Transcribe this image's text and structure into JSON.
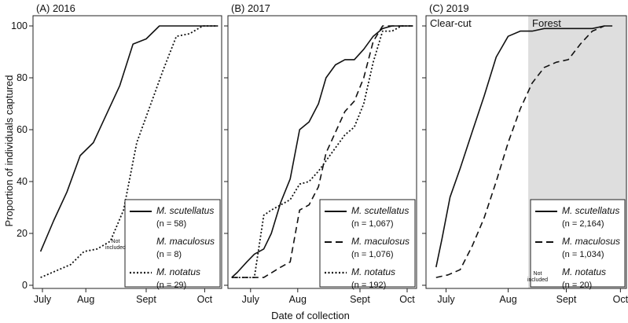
{
  "figure": {
    "ylabel": "Proportion of individuals captured",
    "xlabel": "Date of collection"
  },
  "colors": {
    "forest_shade": "#dedede",
    "line": "#111111",
    "axis": "#222222"
  },
  "chart_data": [
    {
      "type": "line",
      "title": "(A) 2016",
      "ylim": [
        0,
        100
      ],
      "yticks": [
        0,
        20,
        40,
        60,
        80,
        100
      ],
      "xlim": [
        0,
        100
      ],
      "xticks": [
        {
          "x": 5,
          "label": "July"
        },
        {
          "x": 28,
          "label": "Aug"
        },
        {
          "x": 60,
          "label": "Sept"
        },
        {
          "x": 91,
          "label": "Oct"
        }
      ],
      "series": [
        {
          "name": "M. scutellatus",
          "n": "(n = 58)",
          "style": "solid",
          "included": true,
          "x": [
            4,
            11,
            18,
            25,
            32,
            39,
            46,
            53,
            60,
            67,
            74,
            98
          ],
          "y": [
            13,
            25,
            36,
            50,
            55,
            66,
            77,
            93,
            95,
            100,
            100,
            100
          ]
        },
        {
          "name": "M. maculosus",
          "n": "(n = 8)",
          "style": "none",
          "included": false,
          "x": [],
          "y": []
        },
        {
          "name": "M. notatus",
          "n": "(n = 29)",
          "style": "dotted",
          "included": true,
          "x": [
            4,
            20,
            27,
            34,
            41,
            48,
            55,
            62,
            69,
            76,
            83,
            90,
            98
          ],
          "y": [
            3,
            8,
            13,
            14,
            17,
            29,
            55,
            69,
            83,
            96,
            97,
            100,
            100
          ]
        }
      ],
      "legend": {
        "position": "bottom-right",
        "not_included_label": [
          "Not",
          "included"
        ],
        "not_included_series": "M. maculosus"
      }
    },
    {
      "type": "line",
      "title": "(B) 2017",
      "ylim": [
        0,
        100
      ],
      "yticks": [
        0,
        20,
        40,
        60,
        80,
        100
      ],
      "xlim": [
        0,
        100
      ],
      "xticks": [
        {
          "x": 12,
          "label": "July"
        },
        {
          "x": 37,
          "label": "Aug"
        },
        {
          "x": 70,
          "label": "Sept"
        },
        {
          "x": 95,
          "label": "Oct"
        }
      ],
      "series": [
        {
          "name": "M. scutellatus",
          "n": "(n = 1,067)",
          "style": "solid",
          "included": true,
          "x": [
            2,
            5,
            10,
            14,
            19,
            23,
            28,
            33,
            38,
            43,
            48,
            52,
            57,
            62,
            67,
            72,
            77,
            82,
            87,
            92,
            98
          ],
          "y": [
            3,
            5,
            9,
            12,
            14,
            20,
            32,
            41,
            60,
            63,
            70,
            80,
            85,
            87,
            87,
            91,
            96,
            99,
            100,
            100,
            100
          ]
        },
        {
          "name": "M. maculosus",
          "n": "(n = 1,076)",
          "style": "dashed",
          "included": true,
          "x": [
            2,
            10,
            19,
            28,
            33,
            38,
            43,
            48,
            52,
            57,
            62,
            67,
            72,
            77,
            82,
            87,
            92,
            98
          ],
          "y": [
            3,
            3,
            3,
            7,
            9,
            29,
            31,
            38,
            51,
            59,
            67,
            71,
            80,
            94,
            100,
            100,
            100,
            100
          ]
        },
        {
          "name": "M. notatus",
          "n": "(n = 192)",
          "style": "dotted",
          "included": true,
          "x": [
            2,
            14,
            19,
            23,
            28,
            33,
            38,
            43,
            48,
            52,
            57,
            62,
            67,
            72,
            77,
            82,
            87,
            92,
            98
          ],
          "y": [
            3,
            3,
            27,
            29,
            31,
            33,
            39,
            40,
            44,
            48,
            53,
            58,
            61,
            70,
            86,
            98,
            98,
            100,
            100
          ]
        }
      ],
      "legend": {
        "position": "bottom-right"
      }
    },
    {
      "type": "line",
      "title": "(C) 2019",
      "ylim": [
        0,
        100
      ],
      "yticks": [
        0,
        20,
        40,
        60,
        80,
        100
      ],
      "xlim": [
        0,
        100
      ],
      "xticks": [
        {
          "x": 10,
          "label": "July"
        },
        {
          "x": 41,
          "label": "Aug"
        },
        {
          "x": 70,
          "label": "Sept"
        },
        {
          "x": 97,
          "label": "Oct"
        }
      ],
      "regions": [
        {
          "label": "Clear-cut",
          "from": 0,
          "to": 51,
          "shaded": false
        },
        {
          "label": "Forest",
          "from": 51,
          "to": 100,
          "shaded": true
        }
      ],
      "series": [
        {
          "name": "M. scutellatus",
          "n": "(n = 2,164)",
          "style": "solid",
          "included": true,
          "x": [
            5,
            8,
            12,
            17,
            23,
            29,
            35,
            41,
            47,
            53,
            59,
            65,
            71,
            77,
            83,
            89,
            93
          ],
          "y": [
            7,
            18,
            34,
            45,
            59,
            73,
            88,
            96,
            98,
            98,
            99,
            99,
            99,
            99,
            99,
            100,
            100
          ]
        },
        {
          "name": "M. maculosus",
          "n": "(n = 1,034)",
          "style": "dashed",
          "included": true,
          "x": [
            5,
            11,
            17,
            23,
            29,
            35,
            41,
            47,
            53,
            59,
            65,
            71,
            77,
            83,
            89
          ],
          "y": [
            3,
            4,
            6,
            15,
            26,
            40,
            55,
            68,
            78,
            84,
            86,
            87,
            93,
            98,
            100
          ]
        },
        {
          "name": "M. notatus",
          "n": "(n = 20)",
          "style": "none",
          "included": false,
          "x": [],
          "y": []
        }
      ],
      "legend": {
        "position": "bottom-right",
        "not_included_label": [
          "Not",
          "included"
        ],
        "not_included_series": "M. notatus"
      }
    }
  ]
}
